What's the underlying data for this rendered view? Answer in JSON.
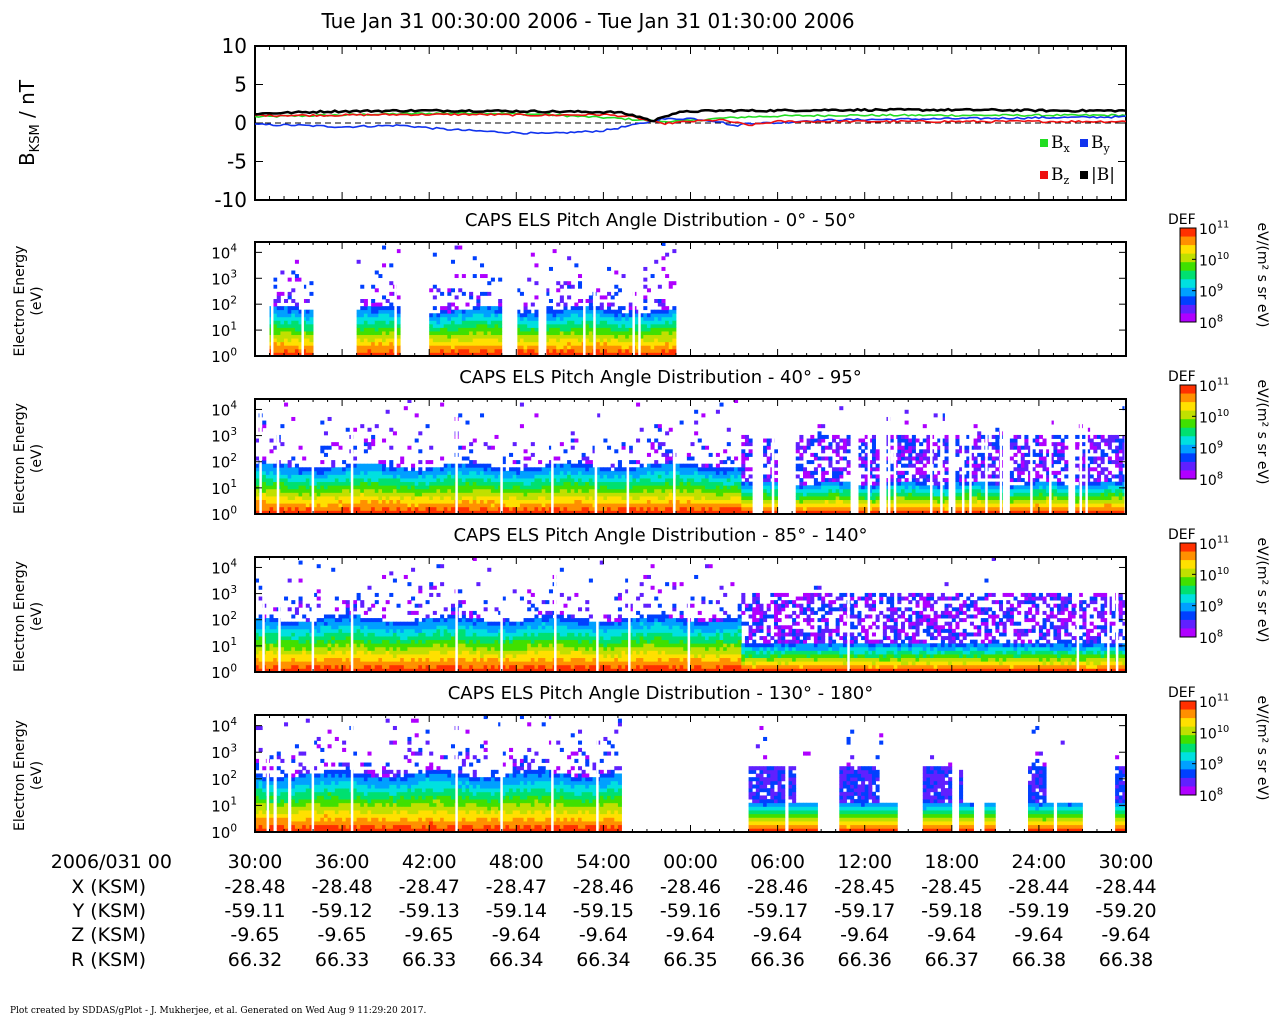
{
  "title": "Tue Jan 31 00:30:00 2006 - Tue Jan 31 01:30:00 2006",
  "footer": "Plot created by SDDAS/gPlot - J. Mukherjee, et al.  Generated on Wed Aug 9 11:29:20 2017.",
  "colors": {
    "bx": "#22dd22",
    "by": "#1133ee",
    "bz": "#ee1111",
    "bmag": "#000000",
    "colormap": [
      "#b000ff",
      "#6020ff",
      "#0040ff",
      "#00a0ff",
      "#00e0e0",
      "#00e070",
      "#40e000",
      "#c0e000",
      "#ffe000",
      "#ff9000",
      "#ff3000"
    ]
  },
  "x_axis": {
    "ticks": [
      "30:00",
      "36:00",
      "42:00",
      "48:00",
      "54:00",
      "00:00",
      "06:00",
      "12:00",
      "18:00",
      "24:00",
      "30:00"
    ],
    "row_labels": [
      "2006/031 00",
      "X (KSM)",
      "Y (KSM)",
      "Z (KSM)",
      "R (KSM)"
    ],
    "ephemeris": {
      "x": [
        "-28.48",
        "-28.48",
        "-28.47",
        "-28.47",
        "-28.46",
        "-28.46",
        "-28.46",
        "-28.45",
        "-28.45",
        "-28.44",
        "-28.44"
      ],
      "y": [
        "-59.11",
        "-59.12",
        "-59.13",
        "-59.14",
        "-59.15",
        "-59.16",
        "-59.17",
        "-59.17",
        "-59.18",
        "-59.19",
        "-59.20"
      ],
      "z": [
        "-9.65",
        "-9.65",
        "-9.65",
        "-9.64",
        "-9.64",
        "-9.64",
        "-9.64",
        "-9.64",
        "-9.64",
        "-9.64",
        "-9.64"
      ],
      "r": [
        "66.32",
        "66.33",
        "66.33",
        "66.34",
        "66.34",
        "66.35",
        "66.36",
        "66.36",
        "66.37",
        "66.38",
        "66.38"
      ]
    }
  },
  "chart_data": [
    {
      "type": "line",
      "ylabel_main": "B",
      "ylabel_sub": "KSM",
      "ylabel_unit": " / nT",
      "ylim": [
        -10,
        10
      ],
      "yticks": [
        "10",
        "5",
        "0",
        "-5",
        "-10"
      ],
      "x_minutes_range": [
        0,
        60
      ],
      "legend": [
        {
          "key": "bx",
          "base": "B",
          "sub": "x"
        },
        {
          "key": "by",
          "base": "B",
          "sub": "y"
        },
        {
          "key": "bz",
          "base": "B",
          "sub": "z"
        },
        {
          "key": "bmag",
          "base": "|B|",
          "sub": ""
        }
      ],
      "series": [
        {
          "name": "Bx",
          "key": "bx",
          "x": [
            0,
            5,
            10,
            15,
            20,
            25,
            28,
            30,
            32,
            34,
            36,
            40,
            45,
            50,
            55,
            60
          ],
          "values": [
            0.8,
            1.0,
            1.2,
            1.3,
            1.1,
            0.6,
            0.2,
            0.3,
            0.6,
            0.8,
            0.9,
            1.0,
            1.0,
            1.0,
            1.0,
            1.0
          ]
        },
        {
          "name": "By",
          "key": "by",
          "x": [
            0,
            3,
            6,
            10,
            13,
            16,
            20,
            24,
            26,
            28,
            30,
            32,
            33,
            34,
            36,
            38,
            40,
            45,
            50,
            55,
            60
          ],
          "values": [
            -0.2,
            -0.3,
            -0.5,
            -0.3,
            -0.8,
            -1.1,
            -1.4,
            -1.0,
            -0.3,
            0.5,
            0.6,
            0.2,
            -0.4,
            0.0,
            0.0,
            0.3,
            0.4,
            0.5,
            0.6,
            0.7,
            0.8
          ]
        },
        {
          "name": "Bz",
          "key": "bz",
          "x": [
            0,
            5,
            10,
            15,
            20,
            24,
            26,
            28,
            30,
            32,
            33,
            34,
            36,
            40,
            45,
            50,
            55,
            60
          ],
          "values": [
            1.0,
            1.0,
            1.1,
            1.1,
            1.0,
            1.1,
            0.8,
            -0.1,
            0.2,
            0.4,
            0.1,
            -0.3,
            0.2,
            0.2,
            0.2,
            0.2,
            0.2,
            0.2
          ]
        },
        {
          "name": "|B|",
          "key": "bmag",
          "x": [
            0,
            5,
            10,
            15,
            20,
            25,
            26.5,
            27.5,
            28,
            29,
            30,
            32,
            35,
            40,
            45,
            50,
            55,
            60
          ],
          "values": [
            1.2,
            1.5,
            1.6,
            1.6,
            1.5,
            1.4,
            0.8,
            0.2,
            0.8,
            1.3,
            1.5,
            1.6,
            1.6,
            1.7,
            1.7,
            1.7,
            1.6,
            1.6
          ]
        }
      ]
    },
    {
      "type": "heatmap",
      "title": "CAPS ELS Pitch Angle Distribution - 0° - 50°",
      "ylabel": [
        "Electron Energy",
        "(eV)"
      ],
      "yticks": [
        "10^0",
        "10^1",
        "10^2",
        "10^3",
        "10^4"
      ],
      "ylim": [
        0,
        4.4
      ],
      "colorbar": {
        "label": "DEF",
        "unit": "eV/(m² s sr eV)",
        "ticks": [
          "10^8",
          "10^9",
          "10^10",
          "10^11"
        ]
      },
      "coverage_minutes": [
        [
          1,
          4
        ],
        [
          7,
          10
        ],
        [
          12,
          17
        ],
        [
          18,
          19.5
        ],
        [
          20,
          29
        ]
      ],
      "gaps_minutes": [
        1.1,
        3.2,
        9.6,
        11.3,
        11.8,
        17.1,
        17.5,
        17.9,
        19.9,
        22.6,
        23.3,
        26.0,
        26.4
      ],
      "top_log_energy": 1.8,
      "noise_level": 0.35
    },
    {
      "type": "heatmap",
      "title": "CAPS ELS Pitch Angle Distribution - 40° - 95°",
      "ylabel": [
        "Electron Energy",
        "(eV)"
      ],
      "yticks": [
        "10^0",
        "10^1",
        "10^2",
        "10^3",
        "10^4"
      ],
      "ylim": [
        0,
        4.4
      ],
      "colorbar": {
        "label": "DEF",
        "unit": "eV/(m² s sr eV)",
        "ticks": [
          "10^8",
          "10^9",
          "10^10",
          "10^11"
        ]
      },
      "coverage_minutes": [
        [
          0,
          60
        ]
      ],
      "gaps_minutes": [
        0.3,
        1.5,
        3.9,
        6.6,
        13.8,
        16.9,
        20.4,
        23.4,
        25.6,
        28.8,
        34.5,
        35.6,
        41.4,
        42.2,
        43.6,
        44.0,
        46.5,
        47.2,
        48.7,
        49.2,
        50.3,
        51.3,
        53.4,
        54.7,
        56.8,
        57.2,
        59.9
      ],
      "wide_gaps_minutes": [
        [
          34.2,
          35.0
        ],
        [
          36.0,
          37.2
        ],
        [
          41.0,
          41.6
        ],
        [
          43.0,
          43.6
        ],
        [
          47.7,
          48.3
        ],
        [
          51.6,
          52.1
        ],
        [
          56.0,
          56.6
        ]
      ],
      "top_log_energy": 1.85,
      "late_start_minute": 33.5,
      "noise_level": 0.25
    },
    {
      "type": "heatmap",
      "title": "CAPS ELS Pitch Angle Distribution - 85° - 140°",
      "ylabel": [
        "Electron Energy",
        "(eV)"
      ],
      "yticks": [
        "10^0",
        "10^1",
        "10^2",
        "10^3",
        "10^4"
      ],
      "ylim": [
        0,
        4.4
      ],
      "colorbar": {
        "label": "DEF",
        "unit": "eV/(m² s sr eV)",
        "ticks": [
          "10^8",
          "10^9",
          "10^10",
          "10^11"
        ]
      },
      "coverage_minutes": [
        [
          0,
          60
        ]
      ],
      "gaps_minutes": [
        0.5,
        1.6,
        3.9,
        6.6,
        13.8,
        16.9,
        20.6,
        23.5,
        25.7,
        29.8,
        40.8,
        56.6,
        58.7,
        59.3
      ],
      "wide_gaps_minutes": [],
      "top_log_energy": 2.05,
      "late_start_minute": 33.5,
      "noise_level": 0.25
    },
    {
      "type": "heatmap",
      "title": "CAPS ELS Pitch Angle Distribution - 130° - 180°",
      "ylabel": [
        "Electron Energy",
        "(eV)"
      ],
      "yticks": [
        "10^0",
        "10^1",
        "10^2",
        "10^3",
        "10^4"
      ],
      "ylim": [
        0,
        4.4
      ],
      "colorbar": {
        "label": "DEF",
        "unit": "eV/(m² s sr eV)",
        "ticks": [
          "10^8",
          "10^9",
          "10^10",
          "10^11"
        ]
      },
      "coverage_minutes": [
        [
          0,
          1.2
        ],
        [
          1.4,
          2.2
        ],
        [
          2.5,
          25.3
        ],
        [
          34.1,
          36.5
        ],
        [
          36.8,
          38.7
        ],
        [
          40.3,
          42.4
        ],
        [
          42.6,
          44.3
        ],
        [
          46.0,
          48.1
        ],
        [
          48.4,
          49.5
        ],
        [
          50.3,
          51.1
        ],
        [
          53.3,
          55.0
        ],
        [
          55.3,
          57.0
        ],
        [
          59.2,
          60
        ]
      ],
      "gaps_minutes": [
        0.8,
        3.9,
        6.6,
        13.8,
        16.9,
        20.4,
        23.5
      ],
      "wide_gaps_minutes": [],
      "top_log_energy": 2.2,
      "late_start_minute": 33.5,
      "noise_level": 0.3
    }
  ]
}
